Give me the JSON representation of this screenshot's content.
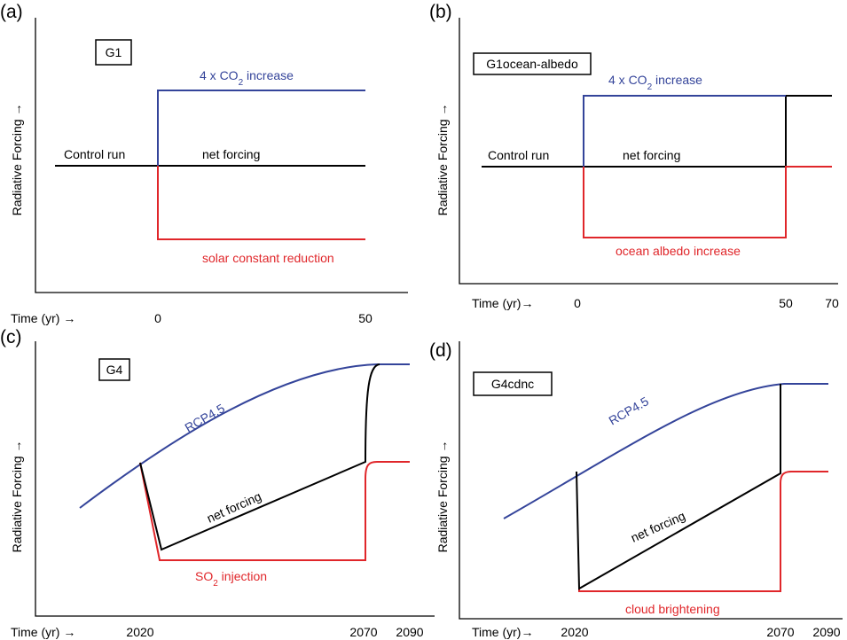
{
  "panels": [
    {
      "label": "(a)",
      "box": "G1",
      "y_axis": "Radiative Forcing →",
      "x_axis": "Time (yr) →",
      "x_ticks": [
        "0",
        "50"
      ],
      "curve_labels": [
        {
          "text": "Control run"
        },
        {
          "text": "net forcing"
        },
        {
          "text": "4 x CO",
          "sub": "2",
          "tail": " increase"
        },
        {
          "text": "solar constant reduction"
        }
      ]
    },
    {
      "label": "(b)",
      "box": "G1ocean-albedo",
      "y_axis": "Radiative Forcing →",
      "x_axis": "Time (yr)→",
      "x_ticks": [
        "0",
        "50",
        "70"
      ],
      "curve_labels": [
        {
          "text": "Control run"
        },
        {
          "text": "net forcing"
        },
        {
          "text": "4 x CO",
          "sub": "2",
          "tail": " increase"
        },
        {
          "text": "ocean albedo increase"
        }
      ]
    },
    {
      "label": "(c)",
      "box": "G4",
      "y_axis": "Radiative Forcing →",
      "x_axis": "Time (yr) →",
      "x_ticks": [
        "2020",
        "2070",
        "2090"
      ],
      "curve_labels": [
        {
          "text": "RCP4.5"
        },
        {
          "text": "net forcing"
        },
        {
          "text": "SO",
          "sub": "2",
          "tail": " injection"
        }
      ]
    },
    {
      "label": "(d)",
      "box": "G4cdnc",
      "y_axis": "Radiative Forcing →",
      "x_axis": "Time (yr)→",
      "x_ticks": [
        "2020",
        "2070",
        "2090"
      ],
      "curve_labels": [
        {
          "text": "RCP4.5"
        },
        {
          "text": "net forcing"
        },
        {
          "text": "cloud brightening"
        }
      ]
    }
  ]
}
